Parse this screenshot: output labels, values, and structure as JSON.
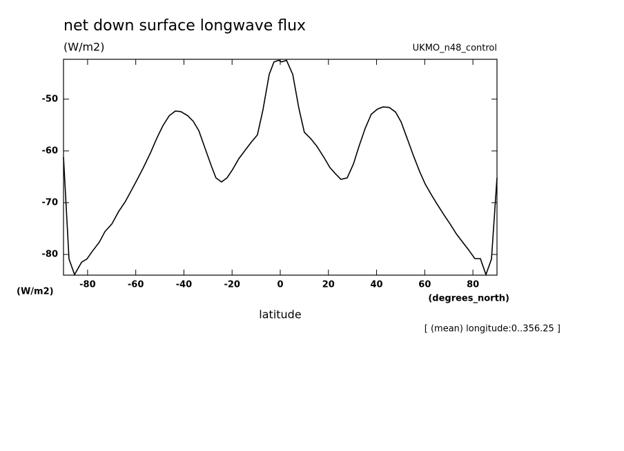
{
  "chart_data": {
    "type": "line",
    "title": "net down surface longwave flux",
    "subtitle": "(W/m2)",
    "run_label": "UKMO_n48_control",
    "y_unit_label": "(W/m2)",
    "x_unit_label": "(degrees_north)",
    "xlabel": "latitude",
    "annotation": "[ (mean) longitude:0..356.25 ]",
    "xlim": [
      -90,
      90
    ],
    "ylim": [
      -84,
      -42.3
    ],
    "xticks": [
      -80,
      -60,
      -40,
      -20,
      0,
      20,
      40,
      60,
      80
    ],
    "yticks": [
      -80,
      -70,
      -60,
      -50
    ],
    "color": "#000000",
    "x": [
      -90,
      -87.7,
      -85.4,
      -82.5,
      -80.3,
      -78.2,
      -75.1,
      -72.8,
      -69.9,
      -67.1,
      -64.5,
      -61.9,
      -59.6,
      -56.8,
      -53.9,
      -51.3,
      -48.7,
      -46.1,
      -43.6,
      -41.3,
      -38.4,
      -36.1,
      -33.8,
      -31.2,
      -28.7,
      -26.7,
      -24.4,
      -22.1,
      -19.8,
      -17.2,
      -14.3,
      -12.0,
      -9.5,
      -7.2,
      -4.6,
      -2.6,
      -0.6,
      0.6,
      2.6,
      5.2,
      7.7,
      10.0,
      12.6,
      15.2,
      18.1,
      20.6,
      22.9,
      25.2,
      27.8,
      30.4,
      32.7,
      35.3,
      37.8,
      40.4,
      42.7,
      45.3,
      47.9,
      50.2,
      52.7,
      55.3,
      57.9,
      60.2,
      62.8,
      65.3,
      67.9,
      70.5,
      73.1,
      75.7,
      78.2,
      80.8,
      83.1,
      85.4,
      87.7,
      90
    ],
    "values": [
      -61.2,
      -80.9,
      -83.9,
      -81.5,
      -80.9,
      -79.5,
      -77.6,
      -75.6,
      -74.1,
      -71.7,
      -69.9,
      -67.7,
      -65.7,
      -63.2,
      -60.4,
      -57.6,
      -55.1,
      -53.2,
      -52.3,
      -52.4,
      -53.2,
      -54.3,
      -56.1,
      -59.5,
      -62.8,
      -65.2,
      -66.0,
      -65.2,
      -63.6,
      -61.5,
      -59.7,
      -58.3,
      -56.9,
      -52.1,
      -45.2,
      -42.8,
      -42.5,
      -42.8,
      -42.5,
      -45.2,
      -51.7,
      -56.4,
      -57.6,
      -59.1,
      -61.2,
      -63.2,
      -64.4,
      -65.5,
      -65.2,
      -62.5,
      -59.1,
      -55.6,
      -52.9,
      -51.9,
      -51.5,
      -51.6,
      -52.5,
      -54.4,
      -57.6,
      -60.9,
      -64.0,
      -66.4,
      -68.5,
      -70.4,
      -72.3,
      -74.1,
      -76.0,
      -77.6,
      -79.1,
      -80.8,
      -80.8,
      -83.9,
      -80.9,
      -65.2
    ]
  }
}
